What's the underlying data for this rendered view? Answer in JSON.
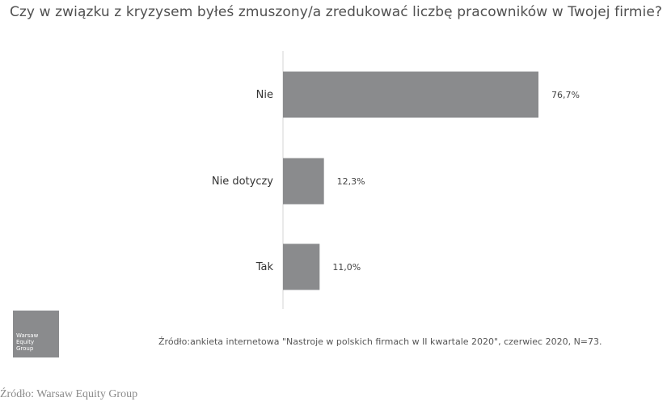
{
  "chart_data": {
    "type": "bar",
    "orientation": "horizontal",
    "title": "Czy w związku z kryzysem byłeś zmuszony/a zredukować liczbę pracowników w Twojej firmie?",
    "categories": [
      "Nie",
      "Nie dotyczy",
      "Tak"
    ],
    "values": [
      76.7,
      12.3,
      11.0
    ],
    "value_labels": [
      "76,7%",
      "12,3%",
      "11,0%"
    ],
    "xlim": [
      0,
      100
    ],
    "grid": false,
    "bar_color": "#8a8b8d"
  },
  "logo": {
    "lines": [
      "Warsaw",
      "Equity",
      "Group"
    ]
  },
  "source_note": "Źródło:ankieta internetowa \"Nastroje w polskich firmach w II kwartale 2020\", czerwiec 2020, N=73.",
  "caption": "Źródło: Warsaw Equity Group"
}
